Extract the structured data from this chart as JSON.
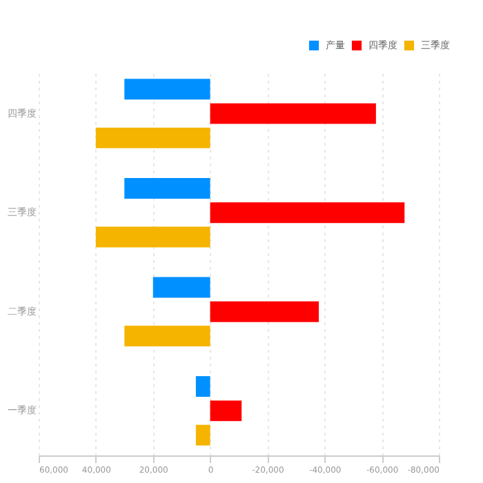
{
  "chart_data": {
    "type": "bar",
    "orientation": "horizontal",
    "categories": [
      "四季度",
      "三季度",
      "二季度",
      "一季度"
    ],
    "series": [
      {
        "name": "产量",
        "color": "#0090ff",
        "values": [
          30000,
          30000,
          20000,
          5000
        ]
      },
      {
        "name": "四季度",
        "color": "#ff0000",
        "values": [
          -58000,
          -68000,
          -38000,
          -11000
        ]
      },
      {
        "name": "三季度",
        "color": "#f5b400",
        "values": [
          40000,
          40000,
          30000,
          5000
        ]
      }
    ],
    "xlim": [
      60000,
      -80000
    ],
    "xticks": [
      {
        "value": 60000,
        "label": "60,000"
      },
      {
        "value": 40000,
        "label": "40,000"
      },
      {
        "value": 20000,
        "label": "20,000"
      },
      0,
      {
        "value": -20000,
        "label": "-20,000"
      },
      {
        "value": -40000,
        "label": "-40,000"
      },
      {
        "value": -60000,
        "label": "-60,000"
      },
      {
        "value": -80000,
        "label": "-80,000"
      }
    ],
    "grid": "x",
    "legend": "top right"
  }
}
